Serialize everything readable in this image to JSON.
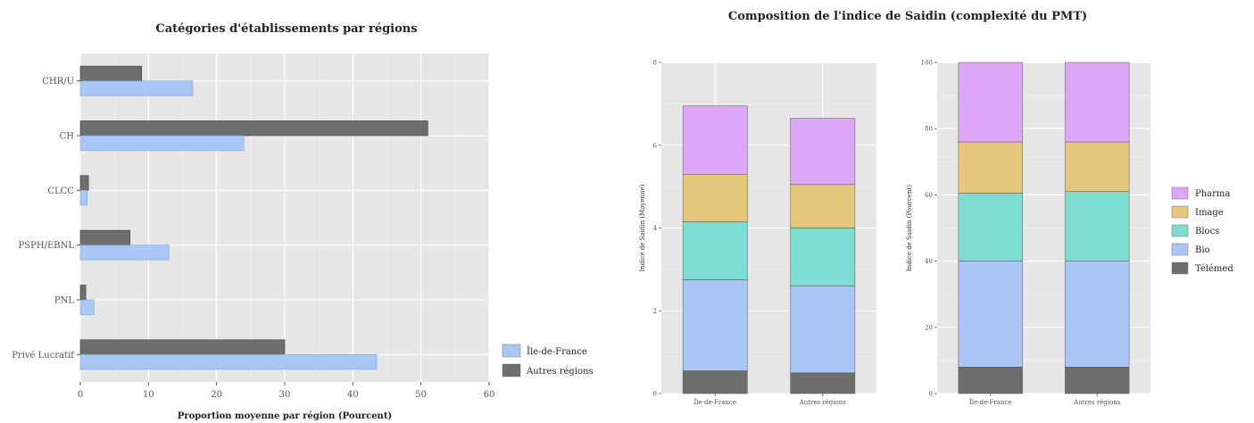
{
  "chart_data": [
    {
      "type": "bar",
      "orientation": "horizontal",
      "title": "Catégories d'établissements par régions",
      "xlabel": "Proportion moyenne par région (Pourcent)",
      "ylabel": "",
      "xlim": [
        0,
        60
      ],
      "xticks": [
        "0",
        "10",
        "20",
        "30",
        "40",
        "50",
        "60"
      ],
      "categories": [
        "CHR/U",
        "CH",
        "CLCC",
        "PSPH/EBNL",
        "PNL",
        "Privé Lucratif"
      ],
      "series": [
        {
          "name": "Autres régions",
          "color": "#6e6e6e",
          "values": [
            9,
            51,
            1.2,
            7.3,
            0.8,
            30
          ]
        },
        {
          "name": "Île-de-France",
          "color": "#a9c7f5",
          "values": [
            16.5,
            24,
            1,
            13,
            2,
            43.5
          ]
        }
      ],
      "legend": {
        "placement": "right",
        "entries": [
          "Île-de-France",
          "Autres régions"
        ]
      },
      "grid": true
    },
    {
      "type": "bar",
      "stacked": true,
      "title": "Composition de l'indice de Saidin (complexité du PMT)",
      "ylabel": "Indice de Saidin (Moyenne)",
      "ylim": [
        0,
        8
      ],
      "yticks": [
        "0",
        "2",
        "4",
        "6",
        "8"
      ],
      "categories": [
        "Île-de-France",
        "Autres régions"
      ],
      "series": [
        {
          "name": "Télémed",
          "color": "#6e6e6e",
          "values": [
            0.55,
            0.5
          ]
        },
        {
          "name": "Bio",
          "color": "#aac6f5",
          "values": [
            2.2,
            2.1
          ]
        },
        {
          "name": "Blocs",
          "color": "#7edcd0",
          "values": [
            1.4,
            1.4
          ]
        },
        {
          "name": "Image",
          "color": "#e4c77c",
          "values": [
            1.15,
            1.05
          ]
        },
        {
          "name": "Pharma",
          "color": "#dda6f7",
          "values": [
            1.65,
            1.6
          ]
        }
      ],
      "grid": true
    },
    {
      "type": "bar",
      "stacked": true,
      "ylabel": "Indice de Saidin (Pourcent)",
      "ylim": [
        0,
        100
      ],
      "yticks": [
        "0",
        "20",
        "40",
        "60",
        "80",
        "100"
      ],
      "categories": [
        "Île-de-France",
        "Autres régions"
      ],
      "series": [
        {
          "name": "Télémed",
          "color": "#6e6e6e",
          "values": [
            8,
            8
          ]
        },
        {
          "name": "Bio",
          "color": "#aac6f5",
          "values": [
            32,
            32
          ]
        },
        {
          "name": "Blocs",
          "color": "#7edcd0",
          "values": [
            20.5,
            21
          ]
        },
        {
          "name": "Image",
          "color": "#e4c77c",
          "values": [
            15.5,
            15
          ]
        },
        {
          "name": "Pharma",
          "color": "#dda6f7",
          "values": [
            24,
            24
          ]
        }
      ],
      "legend": {
        "placement": "right",
        "entries": [
          "Pharma",
          "Image",
          "Blocs",
          "Bio",
          "Télémed"
        ]
      },
      "grid": true
    }
  ]
}
